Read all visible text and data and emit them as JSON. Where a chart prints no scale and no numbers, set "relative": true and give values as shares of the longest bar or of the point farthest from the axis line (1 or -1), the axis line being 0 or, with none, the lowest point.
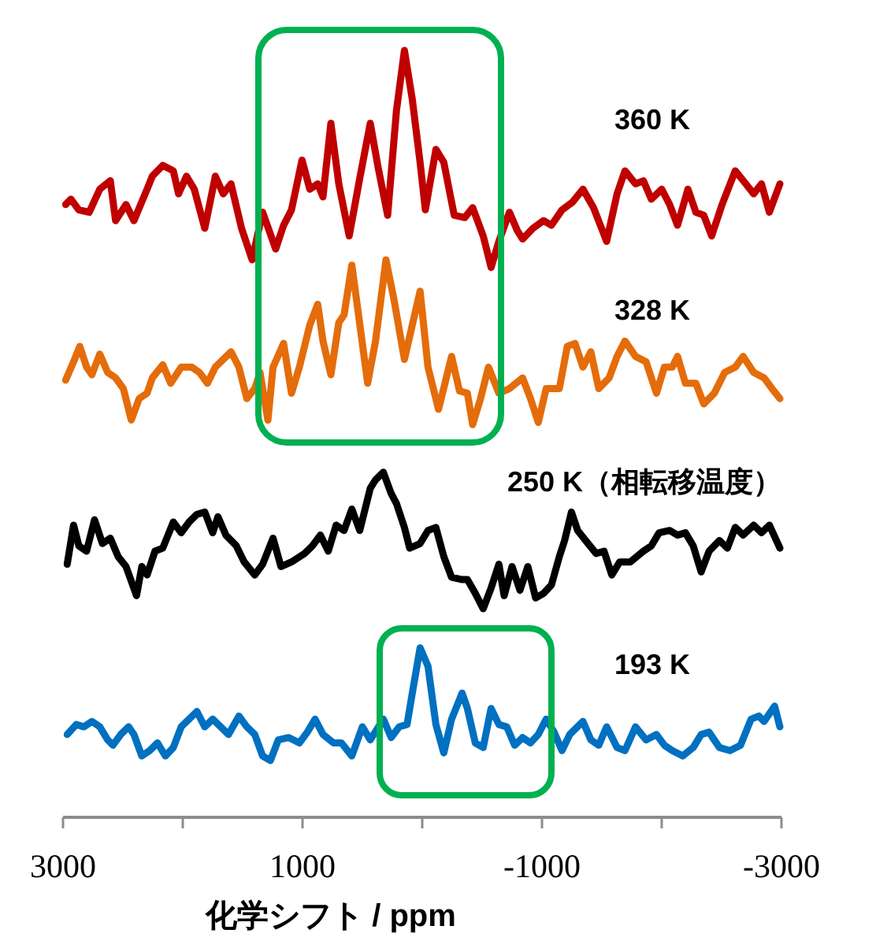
{
  "chart_data": {
    "type": "line",
    "relative": true,
    "xlabel": "化学シフト / ppm",
    "xlim": [
      3000,
      -3000
    ],
    "xticks": [
      3000,
      {
        "value": 2000,
        "label": null
      },
      1000,
      {
        "value": 0,
        "label": null
      },
      -1000,
      {
        "value": -2000,
        "label": null
      },
      -3000
    ],
    "tick_labels": "x",
    "grid": false,
    "marker": "none",
    "line_style": "solid",
    "series": [
      {
        "name": "360 K",
        "color": "#c00000",
        "x": [
          2978,
          2934,
          2868,
          2781,
          2693,
          2605,
          2561,
          2474,
          2408,
          2298,
          2254,
          2167,
          2079,
          2035,
          1969,
          1904,
          1816,
          1728,
          1662,
          1597,
          1509,
          1421,
          1333,
          1224,
          1158,
          1092,
          1004,
          939,
          873,
          829,
          763,
          697,
          610,
          522,
          434,
          368,
          289,
          215,
          149,
          83,
          18,
          -26,
          -114,
          -180,
          -267,
          -355,
          -421,
          -509,
          -575,
          -640,
          -728,
          -794,
          -838,
          -925,
          -1013,
          -1079,
          -1167,
          -1254,
          -1342,
          -1430,
          -1540,
          -1627,
          -1693,
          -1781,
          -1847,
          -1913,
          -2000,
          -2066,
          -2132,
          -2219,
          -2285,
          -2351,
          -2417,
          -2504,
          -2614,
          -2702,
          -2768,
          -2833,
          -2899,
          -2987
        ],
        "values": [
          0.799,
          0.806,
          0.792,
          0.789,
          0.819,
          0.83,
          0.778,
          0.799,
          0.778,
          0.819,
          0.836,
          0.85,
          0.843,
          0.813,
          0.836,
          0.819,
          0.768,
          0.836,
          0.813,
          0.826,
          0.768,
          0.727,
          0.789,
          0.741,
          0.772,
          0.792,
          0.857,
          0.819,
          0.826,
          0.809,
          0.905,
          0.826,
          0.758,
          0.833,
          0.905,
          0.847,
          0.785,
          0.922,
          1.0,
          0.936,
          0.854,
          0.792,
          0.871,
          0.854,
          0.785,
          0.782,
          0.795,
          0.758,
          0.717,
          0.751,
          0.789,
          0.765,
          0.754,
          0.768,
          0.778,
          0.772,
          0.792,
          0.802,
          0.819,
          0.795,
          0.751,
          0.813,
          0.843,
          0.826,
          0.83,
          0.806,
          0.819,
          0.799,
          0.772,
          0.819,
          0.789,
          0.785,
          0.758,
          0.799,
          0.843,
          0.826,
          0.813,
          0.826,
          0.789,
          0.826
        ]
      },
      {
        "name": "328 K",
        "color": "#e46c0a",
        "x": [
          2978,
          2912,
          2860,
          2803,
          2759,
          2693,
          2627,
          2561,
          2496,
          2430,
          2364,
          2298,
          2254,
          2167,
          2101,
          2013,
          1925,
          1860,
          1794,
          1728,
          1597,
          1531,
          1465,
          1399,
          1355,
          1289,
          1246,
          1158,
          1092,
          1026,
          939,
          873,
          829,
          763,
          697,
          653,
          588,
          544,
          456,
          390,
          303,
          237,
          149,
          83,
          18,
          -48,
          -136,
          -245,
          -311,
          -377,
          -421,
          -487,
          -553,
          -640,
          -728,
          -838,
          -904,
          -969,
          -1035,
          -1145,
          -1211,
          -1276,
          -1342,
          -1408,
          -1474,
          -1561,
          -1627,
          -1693,
          -1781,
          -1869,
          -1956,
          -2022,
          -2088,
          -2132,
          -2198,
          -2285,
          -2351,
          -2439,
          -2526,
          -2614,
          -2680,
          -2768,
          -2855,
          -2921,
          -2987
        ],
        "values": [
          0.57,
          0.594,
          0.614,
          0.587,
          0.577,
          0.604,
          0.58,
          0.573,
          0.559,
          0.518,
          0.546,
          0.553,
          0.573,
          0.59,
          0.566,
          0.587,
          0.587,
          0.58,
          0.566,
          0.587,
          0.607,
          0.587,
          0.546,
          0.559,
          0.58,
          0.518,
          0.587,
          0.618,
          0.553,
          0.587,
          0.642,
          0.669,
          0.621,
          0.577,
          0.645,
          0.655,
          0.72,
          0.669,
          0.566,
          0.621,
          0.727,
          0.676,
          0.597,
          0.642,
          0.686,
          0.587,
          0.532,
          0.601,
          0.556,
          0.553,
          0.512,
          0.546,
          0.587,
          0.553,
          0.559,
          0.573,
          0.546,
          0.515,
          0.559,
          0.559,
          0.614,
          0.618,
          0.587,
          0.607,
          0.559,
          0.573,
          0.601,
          0.621,
          0.601,
          0.594,
          0.553,
          0.587,
          0.587,
          0.601,
          0.566,
          0.566,
          0.539,
          0.553,
          0.58,
          0.587,
          0.601,
          0.58,
          0.573,
          0.559,
          0.546
        ]
      },
      {
        "name": "250 K（相転移温度）",
        "color": "#000000",
        "x": [
          2965,
          2912,
          2868,
          2803,
          2737,
          2671,
          2605,
          2540,
          2474,
          2386,
          2342,
          2298,
          2232,
          2167,
          2079,
          2013,
          1947,
          1882,
          1816,
          1750,
          1706,
          1640,
          1553,
          1487,
          1399,
          1333,
          1246,
          1180,
          1092,
          983,
          917,
          851,
          785,
          719,
          653,
          588,
          522,
          434,
          390,
          325,
          259,
          215,
          149,
          105,
          18,
          -48,
          -114,
          -180,
          -245,
          -333,
          -377,
          -443,
          -509,
          -575,
          -640,
          -684,
          -750,
          -816,
          -882,
          -947,
          -1013,
          -1079,
          -1145,
          -1189,
          -1246,
          -1298,
          -1364,
          -1452,
          -1518,
          -1583,
          -1649,
          -1737,
          -1847,
          -1913,
          -1978,
          -2066,
          -2132,
          -2198,
          -2263,
          -2329,
          -2395,
          -2482,
          -2548,
          -2614,
          -2680,
          -2768,
          -2833,
          -2899,
          -2987
        ],
        "values": [
          0.33,
          0.381,
          0.354,
          0.347,
          0.388,
          0.357,
          0.364,
          0.34,
          0.327,
          0.289,
          0.327,
          0.316,
          0.347,
          0.351,
          0.385,
          0.371,
          0.385,
          0.395,
          0.398,
          0.371,
          0.392,
          0.368,
          0.354,
          0.333,
          0.316,
          0.33,
          0.364,
          0.327,
          0.333,
          0.344,
          0.354,
          0.368,
          0.347,
          0.381,
          0.374,
          0.402,
          0.374,
          0.429,
          0.44,
          0.45,
          0.422,
          0.409,
          0.378,
          0.351,
          0.357,
          0.374,
          0.378,
          0.34,
          0.313,
          0.31,
          0.31,
          0.292,
          0.272,
          0.299,
          0.33,
          0.289,
          0.327,
          0.296,
          0.327,
          0.286,
          0.292,
          0.303,
          0.34,
          0.361,
          0.398,
          0.374,
          0.361,
          0.344,
          0.347,
          0.316,
          0.333,
          0.333,
          0.347,
          0.354,
          0.371,
          0.374,
          0.368,
          0.371,
          0.354,
          0.32,
          0.347,
          0.361,
          0.351,
          0.378,
          0.368,
          0.381,
          0.371,
          0.381,
          0.351
        ]
      },
      {
        "name": "193 K",
        "color": "#0070c0",
        "x": [
          2965,
          2890,
          2825,
          2759,
          2693,
          2627,
          2583,
          2518,
          2452,
          2408,
          2342,
          2276,
          2211,
          2145,
          2079,
          2013,
          1947,
          1882,
          1816,
          1750,
          1684,
          1618,
          1531,
          1465,
          1399,
          1333,
          1268,
          1202,
          1114,
          1026,
          960,
          895,
          829,
          741,
          675,
          588,
          500,
          434,
          325,
          259,
          193,
          127,
          83,
          18,
          -48,
          -114,
          -180,
          -245,
          -333,
          -377,
          -443,
          -509,
          -575,
          -640,
          -706,
          -772,
          -838,
          -904,
          -969,
          -1035,
          -1101,
          -1167,
          -1232,
          -1342,
          -1408,
          -1474,
          -1540,
          -1627,
          -1693,
          -1781,
          -1869,
          -1956,
          -2022,
          -2088,
          -2176,
          -2263,
          -2329,
          -2395,
          -2482,
          -2570,
          -2658,
          -2746,
          -2811,
          -2855,
          -2943,
          -2987
        ],
        "values": [
          0.108,
          0.121,
          0.118,
          0.125,
          0.118,
          0.101,
          0.094,
          0.108,
          0.118,
          0.108,
          0.08,
          0.087,
          0.097,
          0.08,
          0.091,
          0.118,
          0.128,
          0.138,
          0.118,
          0.128,
          0.118,
          0.108,
          0.132,
          0.118,
          0.108,
          0.08,
          0.074,
          0.101,
          0.104,
          0.097,
          0.111,
          0.128,
          0.108,
          0.097,
          0.097,
          0.08,
          0.118,
          0.101,
          0.128,
          0.104,
          0.118,
          0.121,
          0.162,
          0.221,
          0.197,
          0.121,
          0.084,
          0.128,
          0.162,
          0.142,
          0.097,
          0.091,
          0.142,
          0.121,
          0.118,
          0.094,
          0.104,
          0.097,
          0.108,
          0.128,
          0.111,
          0.087,
          0.108,
          0.125,
          0.101,
          0.094,
          0.118,
          0.091,
          0.087,
          0.118,
          0.101,
          0.108,
          0.094,
          0.087,
          0.08,
          0.091,
          0.108,
          0.111,
          0.091,
          0.087,
          0.094,
          0.128,
          0.132,
          0.125,
          0.145,
          0.118
        ]
      }
    ]
  }
}
